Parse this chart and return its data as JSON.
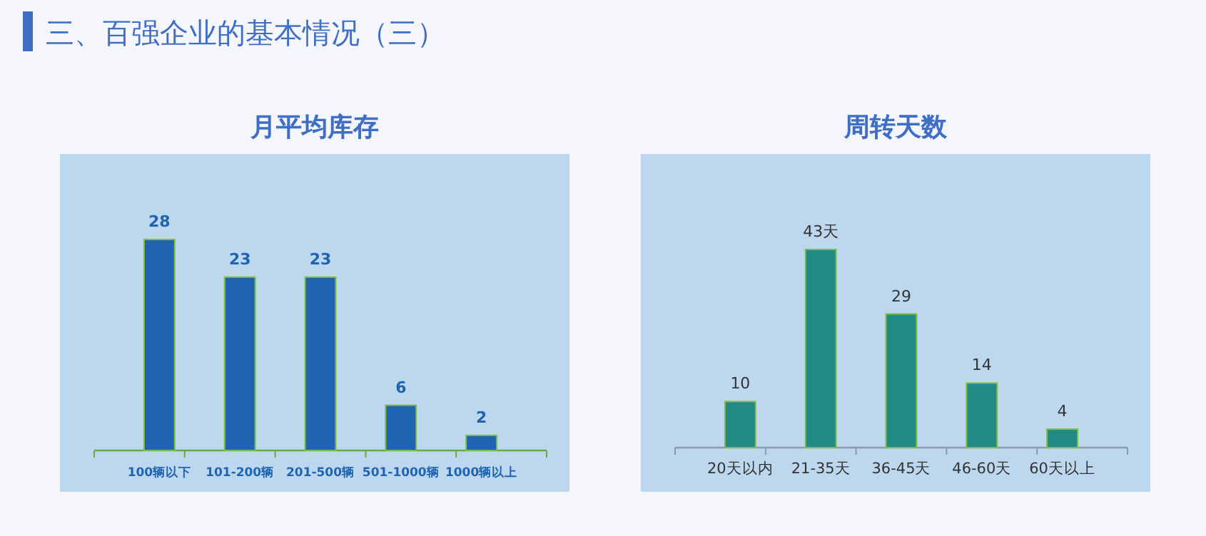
{
  "chart_data": [
    {
      "type": "bar",
      "title": "月平均库存",
      "annotations": [
        "三、百强企业的基本情况（三）"
      ],
      "categories": [
        "100辆以下",
        "101-200辆",
        "201-500辆",
        "501-1000辆",
        "1000辆以上"
      ],
      "values": [
        28,
        23,
        23,
        6,
        2
      ],
      "color": "#1f64b0",
      "data_labels": true
    },
    {
      "type": "bar",
      "title": "周转天数",
      "categories": [
        "20天以内",
        "21-35天",
        "36-45天",
        "46-60天",
        "60天以上"
      ],
      "values": [
        10,
        43,
        29,
        14,
        4
      ],
      "color": "#218a87",
      "value_labels": [
        "10",
        "43天",
        "29",
        "14",
        "4"
      ]
    }
  ]
}
